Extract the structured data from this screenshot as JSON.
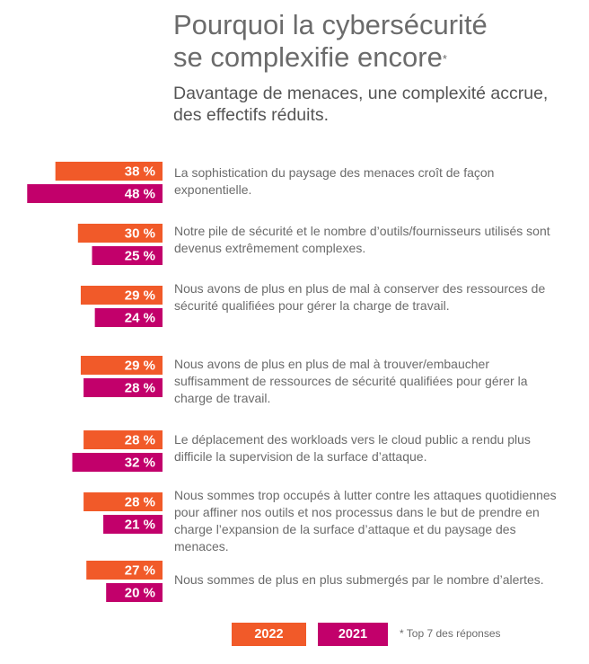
{
  "header": {
    "title_line1": "Pourquoi la cybersécurité",
    "title_line2": "se complexifie encore",
    "title_mark": "*",
    "subtitle": "Davantage de menaces, une complexité accrue, des effectifs réduits."
  },
  "colors": {
    "s2022": "#f15a29",
    "s2021": "#c2006b"
  },
  "chart_data": {
    "type": "bar",
    "orientation": "horizontal",
    "categories": [
      "La sophistication du paysage des menaces croît de façon exponentielle.",
      "Notre pile de sécurité et le nombre d’outils/fournisseurs utilisés sont devenus extrêmement complexes.",
      "Nous avons de plus en plus de mal à conserver des ressources de sécurité qualifiées pour gérer la charge de travail.",
      "Nous avons de plus en plus de mal à trouver/embaucher suffisamment de ressources de sécurité qualifiées pour gérer la charge de travail.",
      "Le déplacement des workloads vers le cloud public a rendu plus difficile la supervision de la surface d’attaque.",
      "Nous sommes trop occupés à lutter contre les attaques quotidiennes pour affiner nos outils et nos processus dans le but de prendre en charge l’expansion de la surface d’attaque et du paysage des menaces.",
      "Nous sommes de plus en plus submergés par le nombre d’alertes."
    ],
    "series": [
      {
        "name": "2022",
        "values": [
          38,
          30,
          29,
          29,
          28,
          28,
          27
        ],
        "labels": [
          "38 %",
          "30 %",
          "29 %",
          "29 %",
          "28 %",
          "28 %",
          "27 %"
        ]
      },
      {
        "name": "2021",
        "values": [
          48,
          25,
          24,
          28,
          32,
          21,
          20
        ],
        "labels": [
          "48 %",
          "25 %",
          "24 %",
          "28 %",
          "32 %",
          "21 %",
          "20 %"
        ]
      }
    ],
    "legend": "bottom"
  },
  "legend": {
    "label_2022": "2022",
    "label_2021": "2021"
  },
  "footnote": "* Top 7 des réponses"
}
